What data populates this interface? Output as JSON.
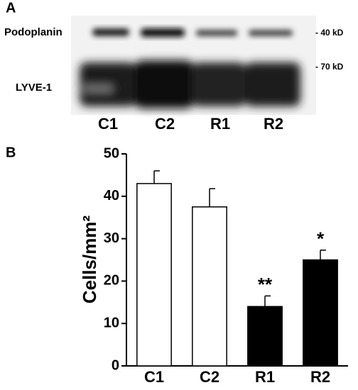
{
  "panel_a": {
    "label": "A",
    "bands": [
      "Podoplanin",
      "LYVE-1"
    ],
    "markers": [
      "- 40 kD",
      "- 70 kD"
    ],
    "lanes": [
      "C1",
      "C2",
      "R1",
      "R2"
    ]
  },
  "chart_data": {
    "type": "bar",
    "label": "B",
    "ylabel": "Cells/mm²",
    "categories": [
      "C1",
      "C2",
      "R1",
      "R2"
    ],
    "values": [
      43,
      37.5,
      14,
      25
    ],
    "errors": [
      3,
      4.3,
      2.5,
      2.3
    ],
    "colors": [
      "#ffffff",
      "#ffffff",
      "#000000",
      "#000000"
    ],
    "annotations": [
      null,
      null,
      "**",
      "*"
    ],
    "ylim": [
      0,
      50
    ],
    "yticks": [
      0,
      10,
      20,
      30,
      40,
      50
    ]
  }
}
